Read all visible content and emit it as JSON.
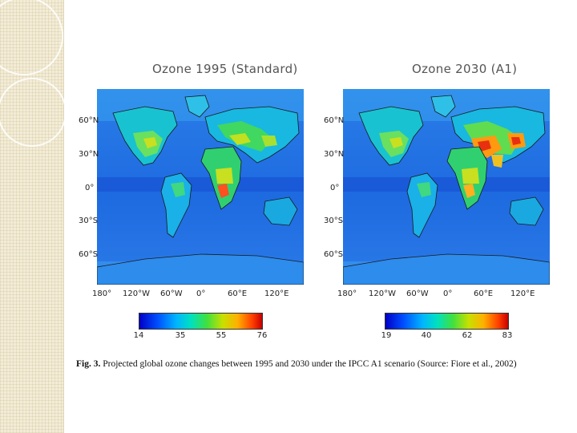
{
  "figure": {
    "panels": [
      {
        "title": "Ozone 1995 (Standard)",
        "lat_labels": [
          "60°N",
          "30°N",
          "0°",
          "30°S",
          "60°S"
        ],
        "lon_labels": [
          "180°",
          "120°W",
          "60°W",
          "0°",
          "60°E",
          "120°E"
        ],
        "colorbar_ticks": [
          "14",
          "35",
          "55",
          "76"
        ]
      },
      {
        "title": "Ozone 2030 (A1)",
        "lat_labels": [
          "60°N",
          "30°N",
          "0°",
          "30°S",
          "60°S"
        ],
        "lon_labels": [
          "180°",
          "120°W",
          "60°W",
          "0°",
          "60°E",
          "120°E"
        ],
        "colorbar_ticks": [
          "19",
          "40",
          "62",
          "83"
        ]
      }
    ],
    "caption_label": "Fig. 3.",
    "caption_text": "Projected global ozone changes between 1995 and 2030 under the IPCC A1 scenario (Source: Fiore et al., 2002)"
  },
  "colors": {
    "background_ocean": "#1e6fe0",
    "colormap": [
      "#0000c8",
      "#0050ff",
      "#00b4ff",
      "#00e0c0",
      "#40e040",
      "#c8e000",
      "#ffb000",
      "#ff4000",
      "#c80000"
    ]
  }
}
